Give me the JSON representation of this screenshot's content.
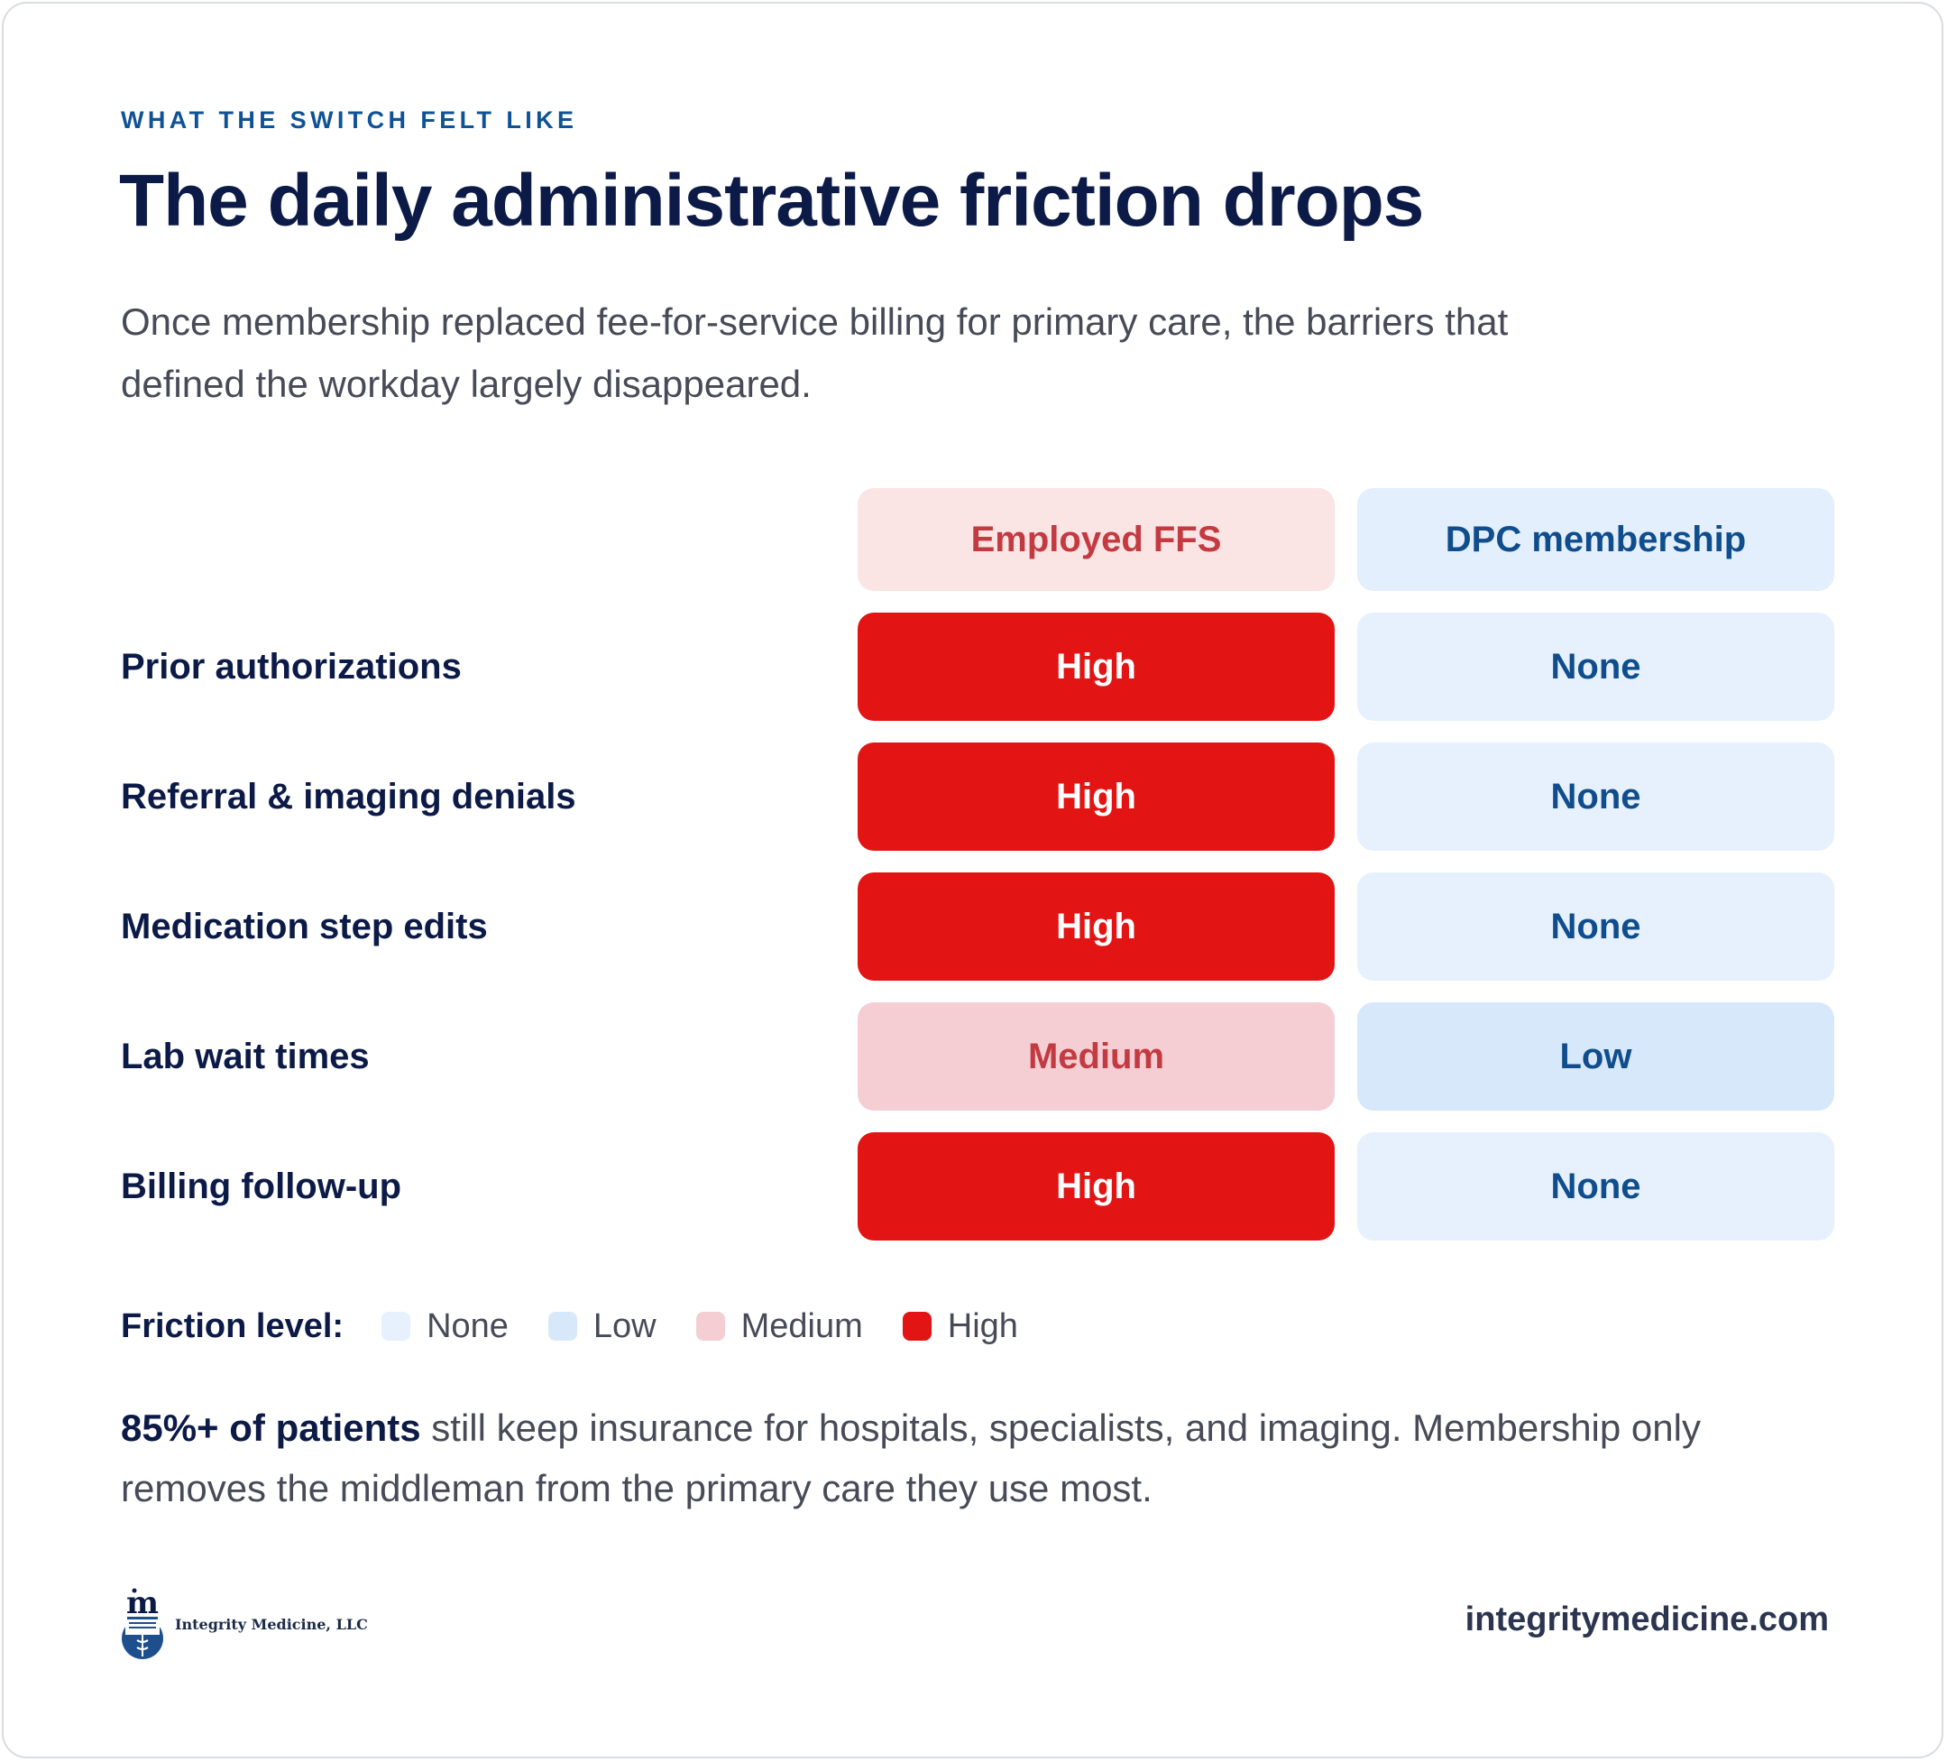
{
  "eyebrow": "WHAT THE SWITCH FELT LIKE",
  "title": "The daily administrative friction drops",
  "subtitle": "Once membership replaced fee-for-service billing for primary care, the barriers that defined the workday largely disappeared.",
  "colors": {
    "High": "#e31414",
    "Medium": "#f5ced4",
    "Low": "#d7e8fa",
    "None": "#e6f1fd",
    "navy": "#0c1a47",
    "accent_blue": "#0f5296"
  },
  "chart_data": {
    "type": "table",
    "columns": [
      "Employed FFS",
      "DPC membership"
    ],
    "rows": [
      {
        "label": "Prior authorizations",
        "values": [
          "High",
          "None"
        ]
      },
      {
        "label": "Referral & imaging denials",
        "values": [
          "High",
          "None"
        ]
      },
      {
        "label": "Medication step edits",
        "values": [
          "High",
          "None"
        ]
      },
      {
        "label": "Lab wait times",
        "values": [
          "Medium",
          "Low"
        ]
      },
      {
        "label": "Billing follow-up",
        "values": [
          "High",
          "None"
        ]
      }
    ],
    "legend": {
      "title": "Friction level:",
      "items": [
        "None",
        "Low",
        "Medium",
        "High"
      ]
    }
  },
  "note": {
    "bold": "85%+ of patients",
    "text": " still keep insurance for hospitals, specialists, and imaging. Membership only removes the middleman from the primary care they use most."
  },
  "footer": {
    "logo_name": "Integrity Medicine, LLC",
    "logo_icon": "integrity-medicine-logo",
    "website": "integritymedicine.com"
  }
}
